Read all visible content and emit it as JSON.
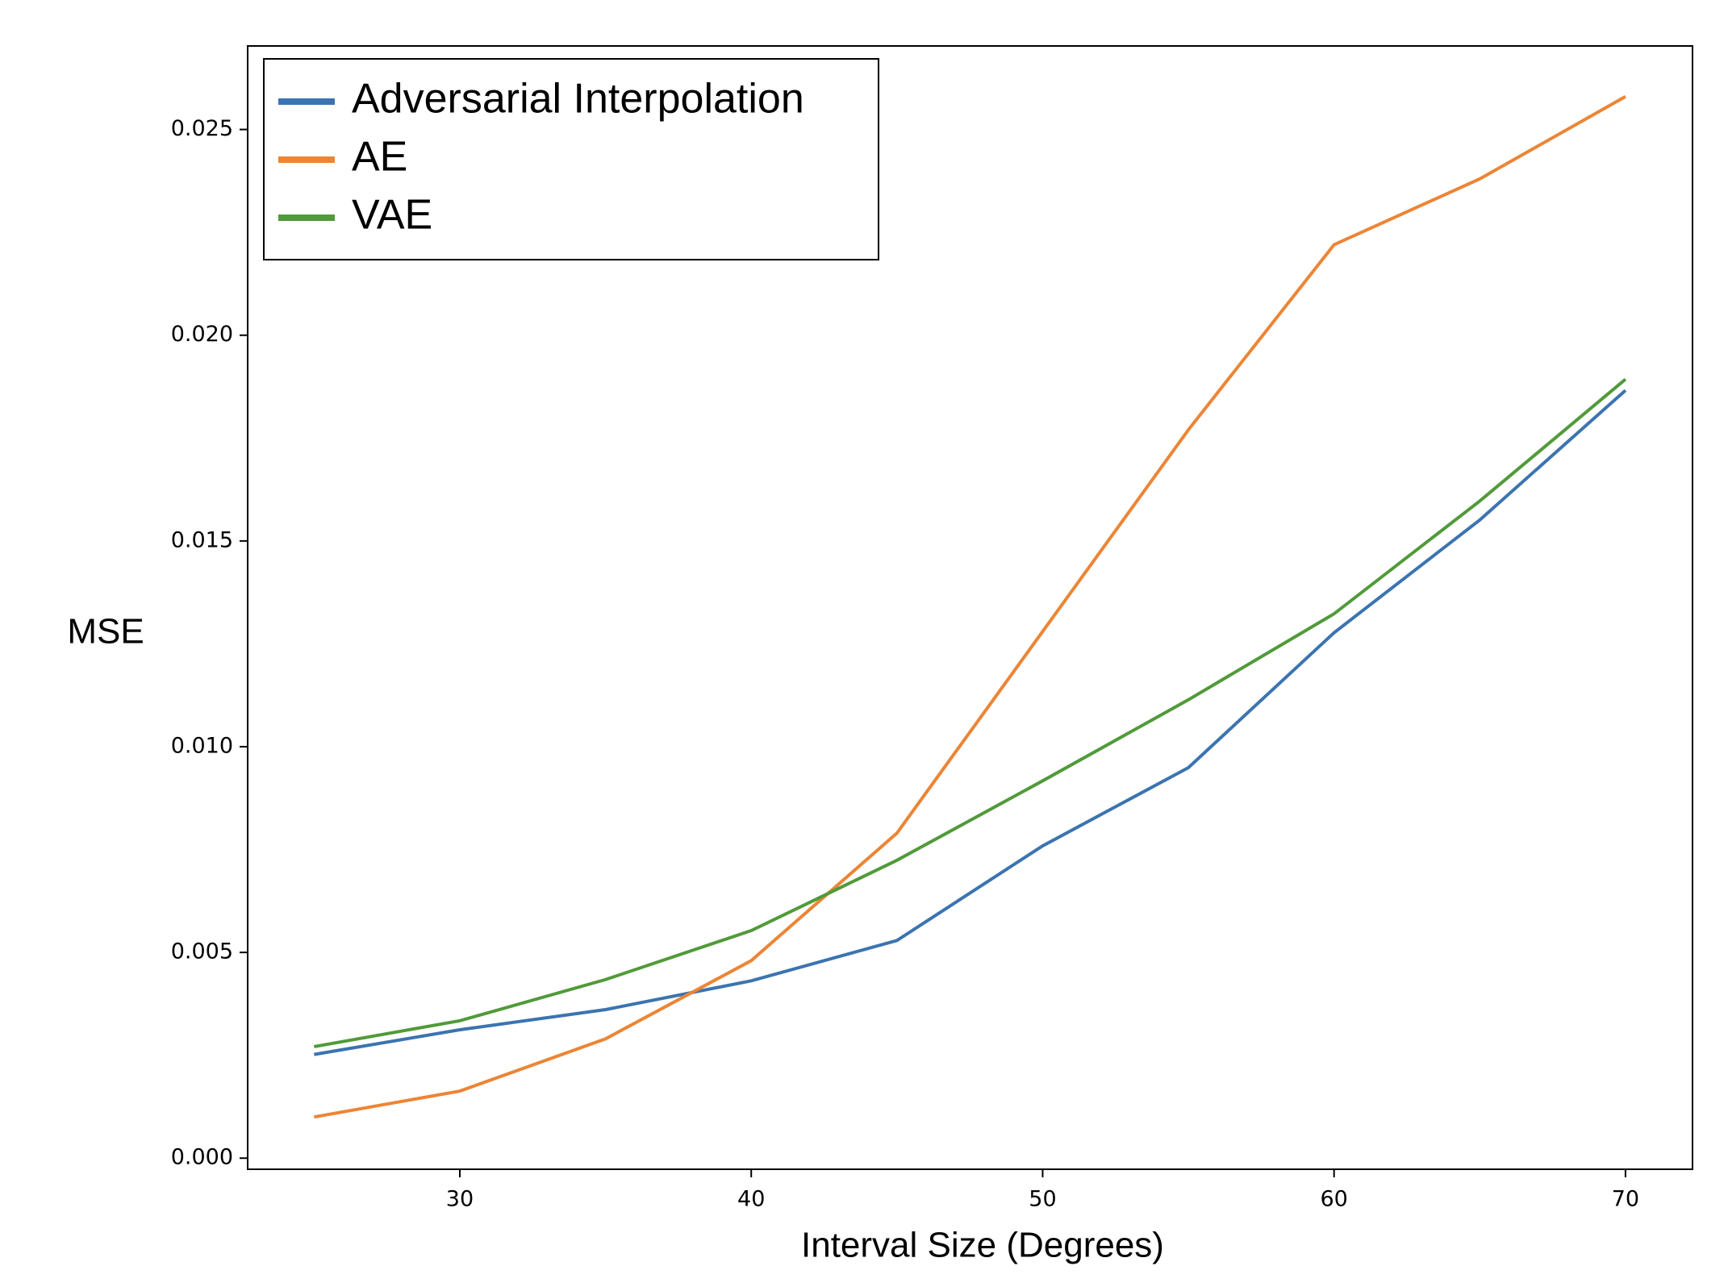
{
  "chart_data": {
    "type": "line",
    "x": [
      25,
      30,
      35,
      40,
      45,
      50,
      55,
      60,
      65,
      70
    ],
    "series": [
      {
        "name": "Adversarial Interpolation",
        "color": "#3b74b0",
        "values": [
          0.00252,
          0.00312,
          0.00361,
          0.00431,
          0.00529,
          0.00759,
          0.00949,
          0.01277,
          0.01551,
          0.01866
        ]
      },
      {
        "name": "AE",
        "color": "#ec8535",
        "values": [
          0.001,
          0.00163,
          0.0029,
          0.0048,
          0.0079,
          0.0128,
          0.0177,
          0.0222,
          0.0238,
          0.0258
        ]
      },
      {
        "name": "VAE",
        "color": "#519a3a",
        "values": [
          0.00271,
          0.00334,
          0.00434,
          0.00553,
          0.00724,
          0.00917,
          0.01114,
          0.01323,
          0.01597,
          0.01893
        ]
      }
    ],
    "xlabel": "Interval Size (Degrees)",
    "ylabel": "MSE",
    "xlim": [
      22.72,
      72.3
    ],
    "ylim": [
      -0.00027,
      0.02703
    ],
    "xticks": [
      30,
      40,
      50,
      60,
      70
    ],
    "yticks": [
      {
        "value": 0,
        "label": "0.000"
      },
      {
        "value": 0.005,
        "label": "0.005"
      },
      {
        "value": 0.01,
        "label": "0.010"
      },
      {
        "value": 0.015,
        "label": "0.015"
      },
      {
        "value": 0.02,
        "label": "0.020"
      },
      {
        "value": 0.025,
        "label": "0.025"
      }
    ],
    "legend": "upper left",
    "grid": false
  }
}
